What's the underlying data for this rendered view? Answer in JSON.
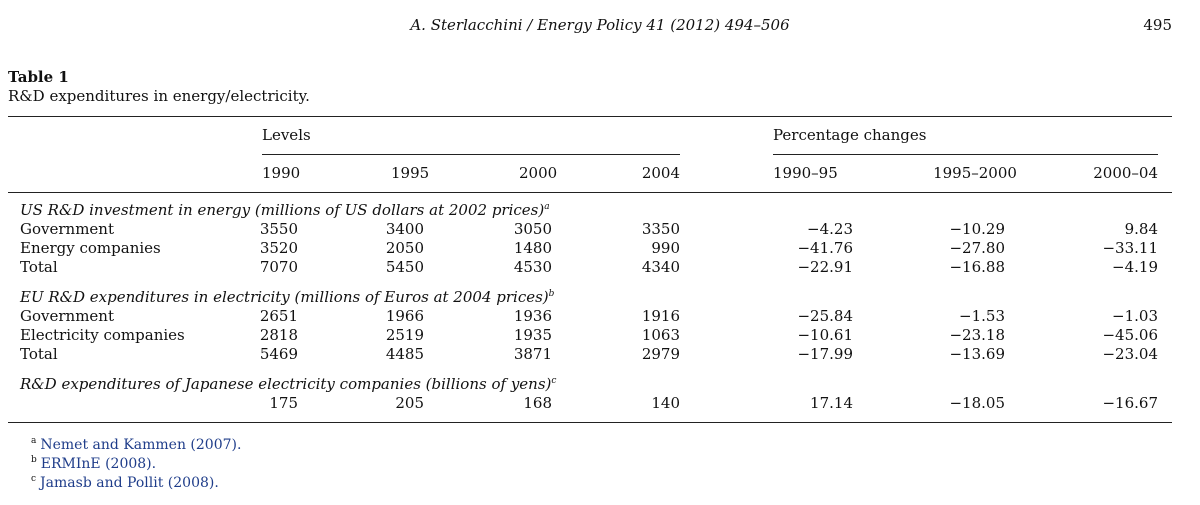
{
  "header": {
    "journal_ref": "A. Sterlacchini / Energy Policy 41 (2012) 494–506",
    "page_number": "495"
  },
  "caption": {
    "label": "Table 1",
    "text": "R&D expenditures in energy/electricity."
  },
  "table": {
    "group_headers": {
      "levels": "Levels",
      "changes": "Percentage changes"
    },
    "columns": [
      "1990",
      "1995",
      "2000",
      "2004",
      "1990–95",
      "1995–2000",
      "2000–04"
    ],
    "sections": [
      {
        "title": "US R&D investment in energy (millions of US dollars at 2002 prices)",
        "note_mark": "a",
        "rows": [
          {
            "label": "Government",
            "values": [
              "3550",
              "3400",
              "3050",
              "3350",
              "−4.23",
              "−10.29",
              "9.84"
            ]
          },
          {
            "label": "Energy companies",
            "values": [
              "3520",
              "2050",
              "1480",
              "990",
              "−41.76",
              "−27.80",
              "−33.11"
            ]
          },
          {
            "label": "Total",
            "values": [
              "7070",
              "5450",
              "4530",
              "4340",
              "−22.91",
              "−16.88",
              "−4.19"
            ]
          }
        ]
      },
      {
        "title": "EU R&D expenditures in electricity (millions of Euros at 2004 prices)",
        "note_mark": "b",
        "rows": [
          {
            "label": "Government",
            "values": [
              "2651",
              "1966",
              "1936",
              "1916",
              "−25.84",
              "−1.53",
              "−1.03"
            ]
          },
          {
            "label": "Electricity companies",
            "values": [
              "2818",
              "2519",
              "1935",
              "1063",
              "−10.61",
              "−23.18",
              "−45.06"
            ]
          },
          {
            "label": "Total",
            "values": [
              "5469",
              "4485",
              "3871",
              "2979",
              "−17.99",
              "−13.69",
              "−23.04"
            ]
          }
        ]
      },
      {
        "title": "R&D expenditures of Japanese electricity companies (billions of yens)",
        "note_mark": "c",
        "rows": [
          {
            "label": "",
            "values": [
              "175",
              "205",
              "168",
              "140",
              "17.14",
              "−18.05",
              "−16.67"
            ]
          }
        ]
      }
    ]
  },
  "footnotes": [
    {
      "mark": "a",
      "text": "Nemet and Kammen (2007)."
    },
    {
      "mark": "b",
      "text": "ERMInE (2008)."
    },
    {
      "mark": "c",
      "text": "Jamasb and Pollit (2008)."
    }
  ]
}
